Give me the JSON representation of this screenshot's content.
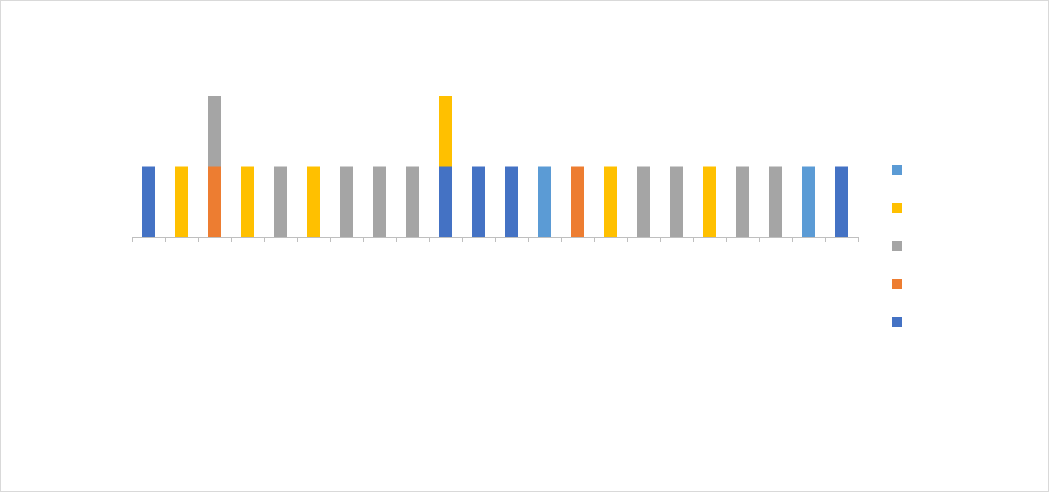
{
  "chart_data": {
    "type": "bar",
    "stacked": true,
    "title": "",
    "xlabel": "",
    "ylabel": "",
    "ylim": [
      0,
      2
    ],
    "grid": false,
    "legend_placement": "right",
    "categories": [
      "",
      "",
      "",
      "",
      "",
      "",
      "",
      "",
      "",
      "",
      "",
      "",
      "",
      "",
      "",
      "",
      "",
      "",
      "",
      "",
      "",
      ""
    ],
    "series": [
      {
        "color": "#4472C4",
        "values": [
          1,
          0,
          0,
          0,
          0,
          0,
          0,
          0,
          0,
          1,
          1,
          1,
          0,
          0,
          0,
          0,
          0,
          0,
          0,
          0,
          0,
          1
        ]
      },
      {
        "color": "#ED7D31",
        "values": [
          0,
          0,
          1,
          0,
          0,
          0,
          0,
          0,
          0,
          0,
          0,
          0,
          0,
          1,
          0,
          0,
          0,
          0,
          0,
          0,
          0,
          0
        ]
      },
      {
        "color": "#A5A5A5",
        "values": [
          0,
          0,
          1,
          0,
          1,
          0,
          1,
          1,
          1,
          0,
          0,
          0,
          0,
          0,
          0,
          1,
          1,
          0,
          1,
          1,
          0,
          0
        ]
      },
      {
        "color": "#FFC000",
        "values": [
          0,
          1,
          0,
          1,
          0,
          1,
          0,
          0,
          0,
          1,
          0,
          0,
          0,
          0,
          1,
          0,
          0,
          1,
          0,
          0,
          0,
          0
        ]
      },
      {
        "color": "#5B9BD5",
        "values": [
          0,
          0,
          0,
          0,
          0,
          0,
          0,
          0,
          0,
          0,
          0,
          0,
          1,
          0,
          0,
          0,
          0,
          0,
          0,
          0,
          1,
          0
        ]
      }
    ],
    "legend_order": [
      4,
      3,
      2,
      1,
      0
    ]
  }
}
